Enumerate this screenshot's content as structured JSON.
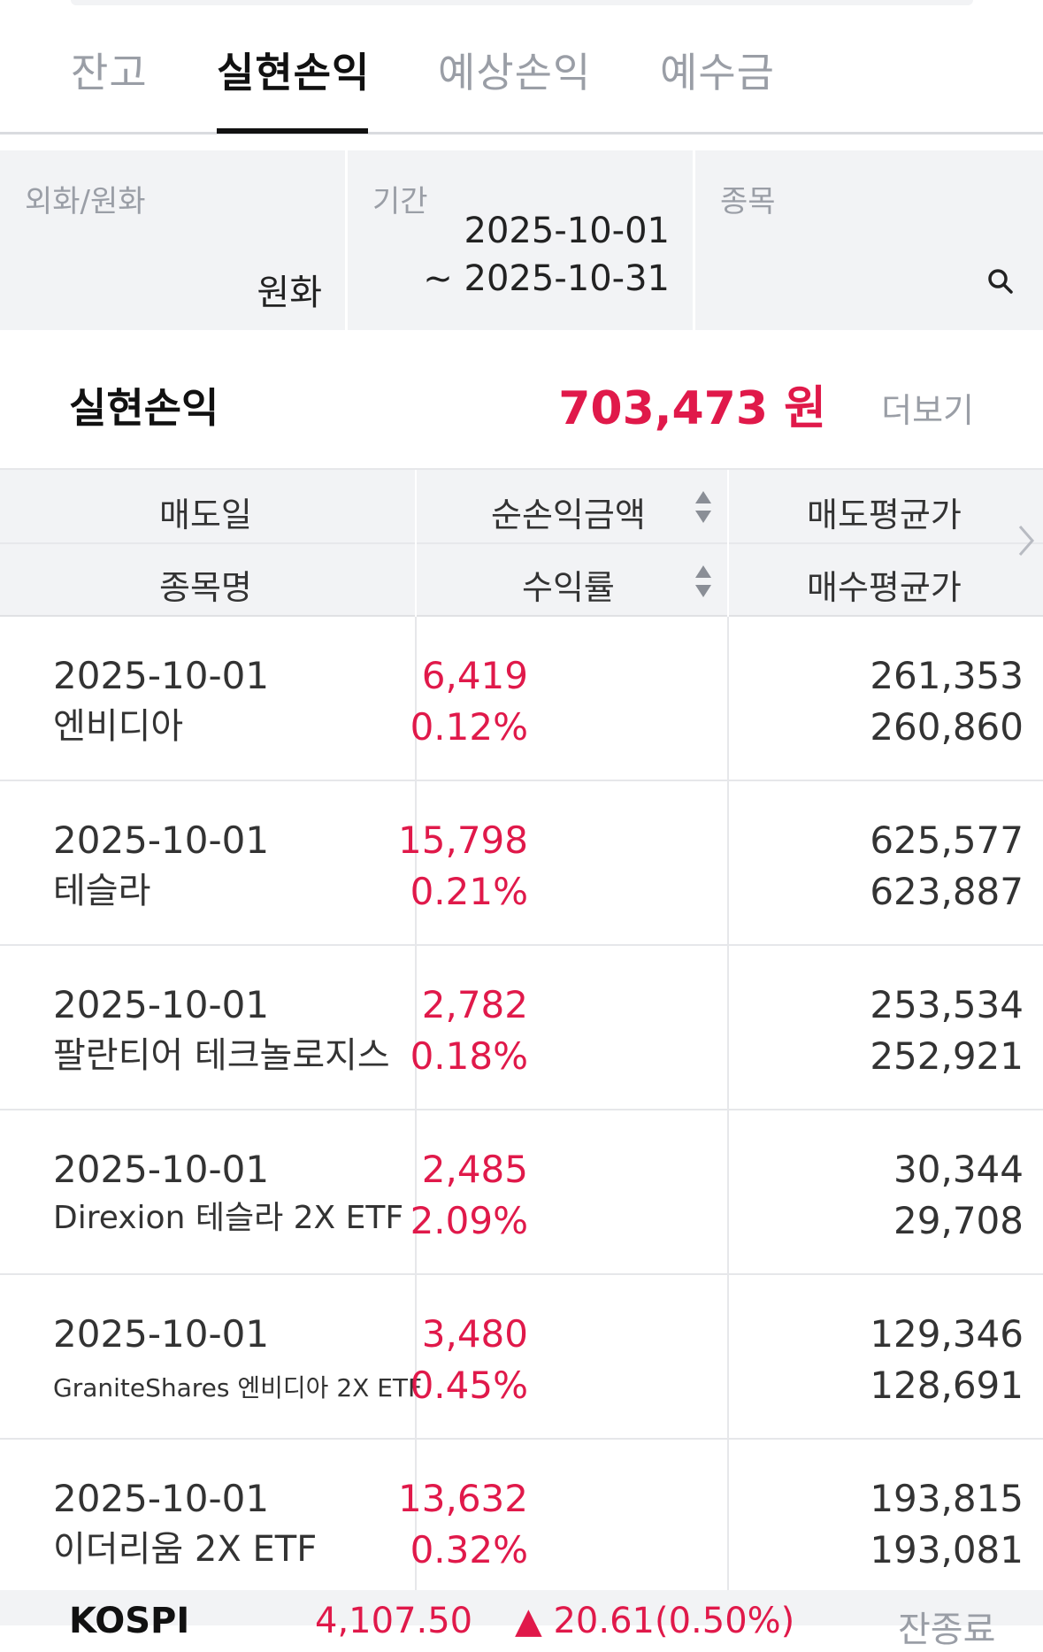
{
  "tabs": [
    {
      "label": "잔고"
    },
    {
      "label": "실현손익"
    },
    {
      "label": "예상손익"
    },
    {
      "label": "예수금"
    }
  ],
  "filters": {
    "currency": {
      "label": "외화/원화",
      "value": "원화"
    },
    "period": {
      "label": "기간",
      "start": "2025-10-01",
      "end": "~ 2025-10-31"
    },
    "stock": {
      "label": "종목"
    }
  },
  "summary": {
    "title": "실현손익",
    "value": "703,473 원",
    "more": "더보기"
  },
  "table": {
    "headers": {
      "sell_date": "매도일",
      "stock_name": "종목명",
      "net_profit": "순손익금액",
      "return_rate": "수익률",
      "sell_avg": "매도평균가",
      "buy_avg": "매수평균가"
    },
    "rows": [
      {
        "date": "2025-10-01",
        "name": "엔비디아",
        "amount": "6,419",
        "rate": "0.12%",
        "sell": "261,353",
        "buy": "260,860"
      },
      {
        "date": "2025-10-01",
        "name": "테슬라",
        "amount": "15,798",
        "rate": "0.21%",
        "sell": "625,577",
        "buy": "623,887"
      },
      {
        "date": "2025-10-01",
        "name": "팔란티어 테크놀로지스",
        "amount": "2,782",
        "rate": "0.18%",
        "sell": "253,534",
        "buy": "252,921"
      },
      {
        "date": "2025-10-01",
        "name": "Direxion 테슬라 2X ETF",
        "amount": "2,485",
        "rate": "2.09%",
        "sell": "30,344",
        "buy": "29,708"
      },
      {
        "date": "2025-10-01",
        "name": "GraniteShares 엔비디아 2X ETF",
        "amount": "3,480",
        "rate": "0.45%",
        "sell": "129,346",
        "buy": "128,691"
      },
      {
        "date": "2025-10-01",
        "name": "이더리움 2X ETF",
        "amount": "13,632",
        "rate": "0.32%",
        "sell": "193,815",
        "buy": "193,081"
      }
    ]
  },
  "ticker": {
    "index": "KOSPI",
    "value": "4,107.50",
    "change": "▲ 20.61(0.50%)",
    "extra": "잔종료"
  },
  "colors": {
    "profit": "#e0194a",
    "muted": "#9a9ea6",
    "panel": "#f2f3f5"
  }
}
